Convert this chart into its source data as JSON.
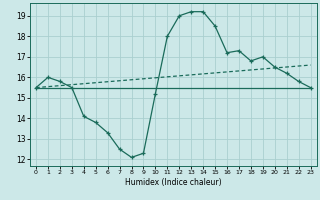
{
  "xlabel": "Humidex (Indice chaleur)",
  "ylabel": "",
  "xlim": [
    -0.5,
    23.5
  ],
  "ylim": [
    11.7,
    19.6
  ],
  "yticks": [
    12,
    13,
    14,
    15,
    16,
    17,
    18,
    19
  ],
  "xticks": [
    0,
    1,
    2,
    3,
    4,
    5,
    6,
    7,
    8,
    9,
    10,
    11,
    12,
    13,
    14,
    15,
    16,
    17,
    18,
    19,
    20,
    21,
    22,
    23
  ],
  "bg_color": "#cce8e8",
  "grid_color": "#aacfcf",
  "line_color": "#1a6b5a",
  "line1_x": [
    0,
    1,
    2,
    3,
    4,
    5,
    6,
    7,
    8,
    9,
    10,
    11,
    12,
    13,
    14,
    15,
    16,
    17,
    18,
    19,
    20,
    21,
    22,
    23
  ],
  "line1_y": [
    15.5,
    16.0,
    15.8,
    15.5,
    14.1,
    13.8,
    13.3,
    12.5,
    12.1,
    12.3,
    15.2,
    18.0,
    19.0,
    19.2,
    19.2,
    18.5,
    17.2,
    17.3,
    16.8,
    17.0,
    16.5,
    16.2,
    15.8,
    15.5
  ],
  "line2_x": [
    0,
    23
  ],
  "line2_y": [
    15.5,
    15.5
  ],
  "line3_x": [
    0,
    23
  ],
  "line3_y": [
    15.5,
    16.6
  ]
}
